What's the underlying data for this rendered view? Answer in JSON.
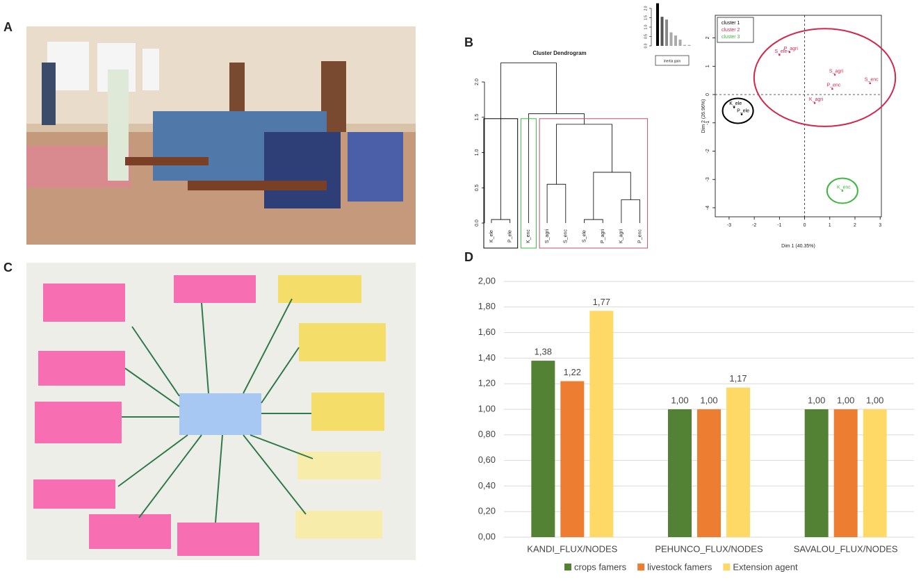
{
  "panels": [
    "A",
    "B",
    "C",
    "D"
  ],
  "chart_data": [
    {
      "type": "dendrogram",
      "title": "Cluster Dendrogram",
      "leaves": [
        "K_ele",
        "P_ele",
        "K_enc",
        "S_agri",
        "S_enc",
        "S_ele",
        "P_agri",
        "K_agri",
        "P_enc"
      ],
      "merge": [
        [
          -1,
          -2
        ],
        [
          -6,
          -7
        ],
        [
          -8,
          -9
        ],
        [
          -4,
          -5
        ],
        [
          2,
          3
        ],
        [
          4,
          5
        ],
        [
          -3,
          6
        ],
        [
          1,
          7
        ]
      ],
      "heights": [
        0.05,
        0.05,
        0.33,
        0.55,
        0.72,
        1.4,
        1.55,
        2.27
      ],
      "cut": 1.48,
      "clusters": [
        {
          "color": "#000000",
          "leaves": [
            0,
            1
          ]
        },
        {
          "color": "#3cb83c",
          "leaves": [
            2
          ]
        },
        {
          "color": "#c0506a",
          "leaves": [
            3,
            4,
            5,
            6,
            7,
            8
          ]
        }
      ],
      "ylim": [
        0,
        2.3
      ],
      "yticks": [
        {
          "value": 0,
          "label": "0.0"
        },
        {
          "value": 0.5,
          "label": "0.5"
        },
        {
          "value": 1,
          "label": "1.0"
        },
        {
          "value": 1.5,
          "label": "1.5"
        },
        {
          "value": 2,
          "label": "2.0"
        }
      ]
    },
    {
      "type": "bar",
      "xlabel": "inertia gain",
      "values": [
        2.27,
        1.55,
        1.4,
        0.72,
        0.55,
        0.33,
        0.05,
        0.05
      ],
      "colors": [
        "#000000",
        "#555555",
        "#888888",
        "#aaaaaa",
        "#aaaaaa",
        "#aaaaaa",
        "#aaaaaa",
        "#aaaaaa"
      ],
      "ylim": [
        0,
        2.3
      ],
      "yticks": [
        {
          "value": 0,
          "label": "0.0"
        },
        {
          "value": 0.5,
          "label": "0.5"
        },
        {
          "value": 1,
          "label": "1.0"
        },
        {
          "value": 1.5,
          "label": "1.5"
        },
        {
          "value": 2,
          "label": "2.0"
        }
      ]
    },
    {
      "type": "scatter",
      "xlabel": "Dim 1 (40.35%)",
      "ylabel": "Dim 2 (26.96%)",
      "xlim": [
        -3.55,
        3.05
      ],
      "xticks": [
        -3,
        -2,
        -1,
        0,
        1,
        2,
        3
      ],
      "ylim": [
        -4.32,
        2.8
      ],
      "yticks": [
        -4,
        -3,
        -2,
        -1,
        0,
        1,
        2
      ],
      "legend": "top-left",
      "series": [
        {
          "name": "cluster 1",
          "color": "#000000",
          "labels": [
            "K_ele",
            "P_ele"
          ],
          "x": [
            -2.8,
            -2.5
          ],
          "values": [
            -0.45,
            -0.7
          ]
        },
        {
          "name": "cluster 2",
          "color": "#d2264a",
          "labels": [
            "S_ele",
            "P_agri",
            "S_agri",
            "S_enc",
            "P_enc",
            "K_agri"
          ],
          "x": [
            -1.0,
            -0.6,
            1.2,
            2.6,
            1.1,
            0.4
          ],
          "values": [
            1.4,
            1.5,
            0.7,
            0.4,
            0.2,
            -0.3
          ]
        },
        {
          "name": "cluster 3",
          "color": "#3cb83c",
          "labels": [
            "K_enc"
          ],
          "x": [
            1.5
          ],
          "values": [
            -3.4
          ]
        }
      ]
    },
    {
      "type": "grouped-bar",
      "categories": [
        "KANDI_FLUX/NODES",
        "PEHUNCO_FLUX/NODES",
        "SAVALOU_FLUX/NODES"
      ],
      "series": [
        {
          "name": "crops famers",
          "color": "#548235",
          "values": [
            1.38,
            1,
            1
          ],
          "value_labels": [
            "1,38",
            "1,00",
            "1,00"
          ]
        },
        {
          "name": "livestock famers",
          "color": "#ED7D31",
          "values": [
            1.22,
            1,
            1
          ],
          "value_labels": [
            "1,22",
            "1,00",
            "1,00"
          ]
        },
        {
          "name": "Extension agent",
          "color": "#FFD966",
          "values": [
            1.77,
            1.17,
            1
          ],
          "value_labels": [
            "1,77",
            "1,17",
            "1,00"
          ]
        }
      ],
      "ylim": [
        0,
        2
      ],
      "yticks": [
        {
          "value": 0,
          "label": "0,00"
        },
        {
          "value": 0.2,
          "label": "0,20"
        },
        {
          "value": 0.4,
          "label": "0,40"
        },
        {
          "value": 0.6,
          "label": "0,60"
        },
        {
          "value": 0.8,
          "label": "0,80"
        },
        {
          "value": 1,
          "label": "1,00"
        },
        {
          "value": 1.2,
          "label": "1,20"
        },
        {
          "value": 1.4,
          "label": "1,40"
        },
        {
          "value": 1.6,
          "label": "1,60"
        },
        {
          "value": 1.8,
          "label": "1,80"
        },
        {
          "value": 2,
          "label": "2,00"
        }
      ],
      "grid": true,
      "legend": "bottom"
    }
  ]
}
